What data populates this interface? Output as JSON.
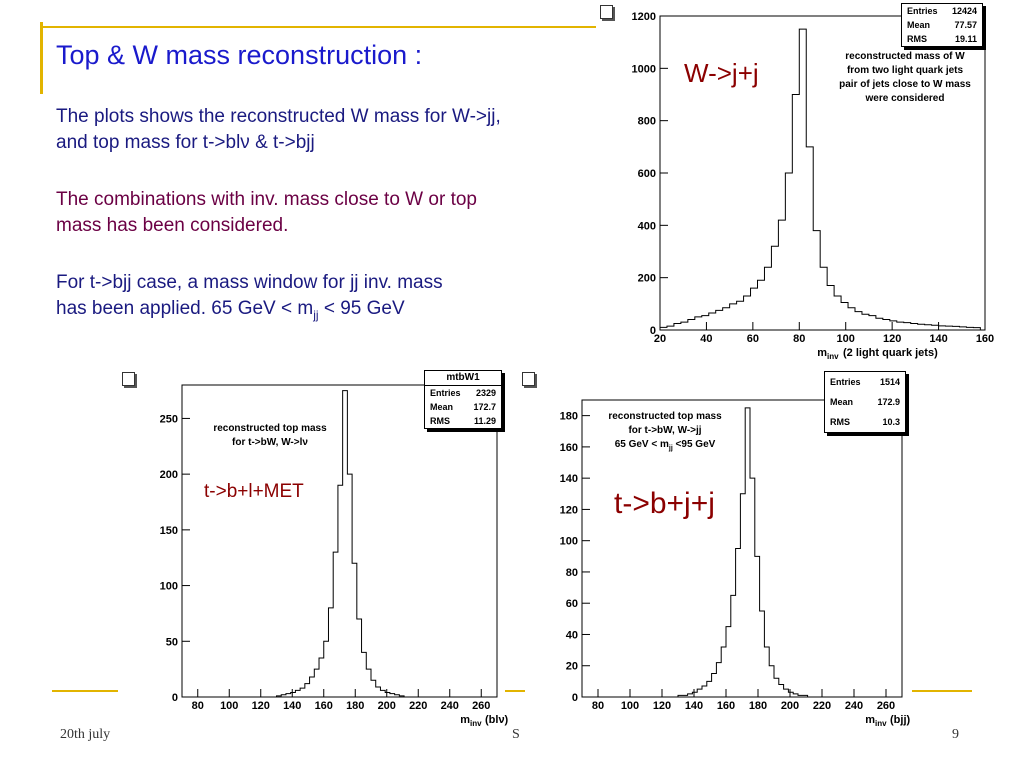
{
  "slide": {
    "title": "Top & W mass reconstruction :",
    "para1_line1": "The plots shows the reconstructed W mass for W->jj,",
    "para1_line2": "and top mass for t->blν & t->bjj",
    "para2_line1": "The combinations with inv. mass close to W or top",
    "para2_line2": "mass has been considered.",
    "para3_line1": "For t->bjj case, a mass window for jj inv. mass",
    "para3_line2_pre": "has been applied. 65 GeV < m",
    "para3_line2_sub": "jj",
    "para3_line2_post": " < 95 GeV",
    "footer_left": "20th july",
    "footer_mid": "S",
    "page_number": "9"
  },
  "colors": {
    "title": "#1a1acc",
    "text_blue": "#1a1a80",
    "text_purple": "#6b0044",
    "accent": "#e2b400",
    "plot_label": "#8b0000"
  },
  "chart_data": [
    {
      "type": "histogram",
      "xlabel_main": "m",
      "xlabel_sub": "inv",
      "xlabel_rest": "(2 light quark jets)",
      "xlim": [
        20,
        160
      ],
      "ylim": [
        0,
        1200
      ],
      "xticks": [
        20,
        40,
        60,
        80,
        100,
        120,
        140,
        160
      ],
      "yticks": [
        0,
        200,
        400,
        600,
        800,
        1000,
        1200
      ],
      "x": [
        20,
        23,
        26,
        29,
        32,
        35,
        38,
        41,
        44,
        47,
        50,
        53,
        56,
        59,
        62,
        65,
        68,
        71,
        74,
        77,
        80,
        83,
        86,
        89,
        92,
        95,
        98,
        101,
        104,
        107,
        110,
        113,
        116,
        119,
        122,
        125,
        128,
        131,
        134,
        137,
        140,
        143,
        146,
        149,
        152,
        155
      ],
      "values": [
        10,
        15,
        25,
        30,
        40,
        50,
        55,
        65,
        75,
        85,
        100,
        110,
        130,
        160,
        190,
        240,
        320,
        420,
        600,
        900,
        1150,
        700,
        380,
        240,
        170,
        130,
        105,
        85,
        70,
        60,
        55,
        45,
        40,
        35,
        30,
        28,
        25,
        22,
        20,
        18,
        16,
        15,
        14,
        12,
        10,
        9
      ],
      "stats": [
        {
          "label": "Entries",
          "value": "12424"
        },
        {
          "label": "Mean",
          "value": "77.57"
        },
        {
          "label": "RMS",
          "value": "19.11"
        }
      ],
      "annotation": [
        "reconstructed mass of W",
        "from two light quark jets",
        "pair of jets close to W mass",
        "were considered"
      ],
      "label": "W->j+j"
    },
    {
      "type": "histogram",
      "stats_title": "mtbW1",
      "xlabel_main": "m",
      "xlabel_sub": "inv",
      "xlabel_rest": "(blν)",
      "xlim": [
        70,
        270
      ],
      "ylim": [
        0,
        280
      ],
      "xticks": [
        80,
        100,
        120,
        140,
        160,
        180,
        200,
        220,
        240,
        260
      ],
      "yticks": [
        0,
        50,
        100,
        150,
        200,
        250
      ],
      "x": [
        130,
        133,
        136,
        139,
        142,
        145,
        148,
        151,
        154,
        157,
        160,
        163,
        166,
        169,
        172,
        175,
        178,
        181,
        184,
        187,
        190,
        193,
        196,
        199,
        202,
        205,
        208
      ],
      "values": [
        1,
        2,
        3,
        4,
        6,
        8,
        12,
        18,
        25,
        35,
        50,
        80,
        130,
        190,
        275,
        200,
        120,
        70,
        40,
        25,
        15,
        9,
        6,
        4,
        3,
        2,
        1
      ],
      "stats": [
        {
          "label": "Entries",
          "value": "2329"
        },
        {
          "label": "Mean",
          "value": "172.7"
        },
        {
          "label": "RMS",
          "value": "11.29"
        }
      ],
      "annotation": [
        "reconstructed  top mass",
        "for t->bW, W->lν"
      ],
      "label": "t->b+l+MET"
    },
    {
      "type": "histogram",
      "xlabel_main": "m",
      "xlabel_sub": "inv",
      "xlabel_rest": "(bjj)",
      "xlim": [
        70,
        270
      ],
      "ylim": [
        0,
        190
      ],
      "xticks": [
        80,
        100,
        120,
        140,
        160,
        180,
        200,
        220,
        240,
        260
      ],
      "yticks": [
        0,
        20,
        40,
        60,
        80,
        100,
        120,
        140,
        160,
        180
      ],
      "x": [
        130,
        133,
        136,
        139,
        142,
        145,
        148,
        151,
        154,
        157,
        160,
        163,
        166,
        169,
        172,
        175,
        178,
        181,
        184,
        187,
        190,
        193,
        196,
        199,
        202,
        205,
        208
      ],
      "values": [
        1,
        1,
        2,
        3,
        5,
        7,
        10,
        15,
        22,
        32,
        45,
        65,
        95,
        130,
        185,
        140,
        90,
        55,
        32,
        20,
        12,
        8,
        5,
        3,
        2,
        1,
        1
      ],
      "stats": [
        {
          "label": "Entries",
          "value": "1514"
        },
        {
          "label": "Mean",
          "value": "172.9"
        },
        {
          "label": "RMS",
          "value": "10.3"
        }
      ],
      "annotation": [
        "reconstructed top mass",
        "for t->bW, W->jj",
        "65 GeV < m",
        "jj",
        " <95 GeV"
      ],
      "label": "t->b+j+j"
    }
  ]
}
